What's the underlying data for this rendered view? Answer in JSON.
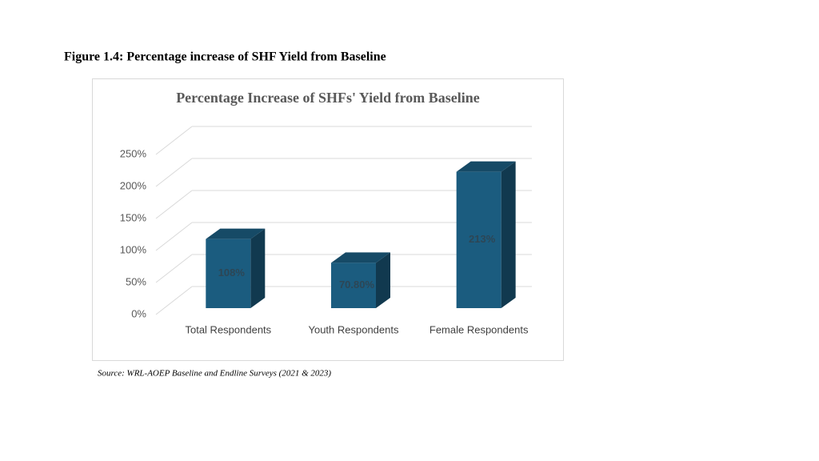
{
  "figure_caption": "Figure 1.4: Percentage increase of SHF Yield from Baseline",
  "source": "Source: WRL-AOEP Baseline and Endline Surveys (2021 & 2023)",
  "chart_data": {
    "type": "bar3d",
    "title": "Percentage Increase of SHFs' Yield from Baseline",
    "categories": [
      "Total Respondents",
      "Youth Respondents",
      "Female Respondents"
    ],
    "values": [
      108,
      70.8,
      213
    ],
    "value_labels": [
      "108%",
      "70.80%",
      "213%"
    ],
    "color": "#1b5c7f",
    "ylim": [
      0,
      250
    ],
    "yticks": [
      {
        "value": 0,
        "label": "0%"
      },
      {
        "value": 50,
        "label": "50%"
      },
      {
        "value": 100,
        "label": "100%"
      },
      {
        "value": 150,
        "label": "150%"
      },
      {
        "value": 200,
        "label": "200%"
      },
      {
        "value": 250,
        "label": "250%"
      }
    ],
    "grid": true
  }
}
